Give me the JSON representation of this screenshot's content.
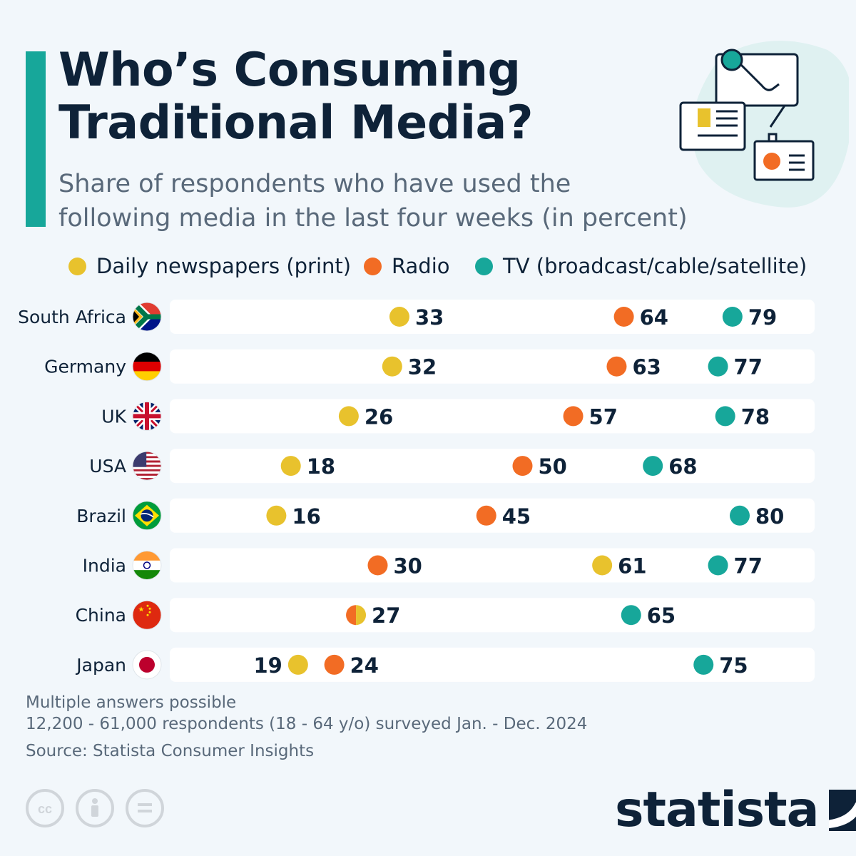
{
  "header": {
    "title_line1": "Who’s Consuming",
    "title_line2": "Traditional Media?",
    "subtitle_line1": "Share of respondents who have used the",
    "subtitle_line2": "following media in the last four weeks (in percent)"
  },
  "colors": {
    "newspapers": "#e8c22d",
    "radio": "#f26c24",
    "tv": "#17a79a",
    "accent": "#17a79a",
    "text": "#0e2238",
    "muted": "#59697a"
  },
  "icons": [
    "newspaper-icon",
    "microphone-icon",
    "tv-screen-icon",
    "radio-icon",
    "creative-commons-icon",
    "attribution-icon",
    "no-derivatives-icon",
    "statista-logo-icon"
  ],
  "chart_data": {
    "type": "dot",
    "xlim": [
      0,
      100
    ],
    "legend_position": "top",
    "series": [
      {
        "name": "Daily newspapers (print)",
        "key": "newspapers",
        "values": [
          33,
          32,
          26,
          18,
          16,
          61,
          27,
          19
        ]
      },
      {
        "name": "Radio",
        "key": "radio",
        "values": [
          64,
          63,
          57,
          50,
          45,
          30,
          27,
          24
        ]
      },
      {
        "name": "TV (broadcast/cable/satellite)",
        "key": "tv",
        "values": [
          79,
          77,
          78,
          68,
          80,
          77,
          65,
          75
        ]
      }
    ],
    "categories": [
      "South Africa",
      "Germany",
      "UK",
      "USA",
      "Brazil",
      "India",
      "China",
      "Japan"
    ],
    "flags": [
      "south-africa-flag-icon",
      "germany-flag-icon",
      "uk-flag-icon",
      "usa-flag-icon",
      "brazil-flag-icon",
      "india-flag-icon",
      "china-flag-icon",
      "japan-flag-icon"
    ]
  },
  "footer": {
    "note_line1": "Multiple answers possible",
    "note_line2": "12,200 - 61,000 respondents (18 - 64 y/o) surveyed Jan. - Dec. 2024",
    "source": "Source: Statista Consumer Insights",
    "brand": "statista"
  }
}
